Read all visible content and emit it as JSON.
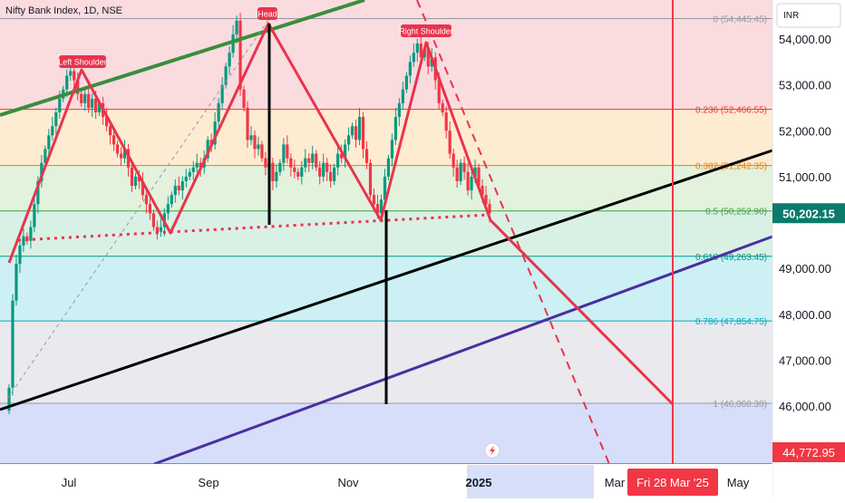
{
  "header": {
    "symbol_title": "Nifty Bank Index, 1D, NSE",
    "currency": "INR"
  },
  "colors": {
    "up": "#089981",
    "down": "#f23645",
    "pattern": "#e8344e",
    "fib_zone_0": "#fadbde",
    "fib_zone_1": "#fdebd2",
    "fib_zone_2": "#e2f2dd",
    "fib_zone_3": "#d9f1e4",
    "fib_zone_4": "#cdf0f4",
    "fib_zone_5": "#e9e9ee",
    "fib_zone_6": "#d6def9",
    "trend_green": "#388e3c",
    "channel_black": "#000000",
    "channel_purple": "#4a2fa0",
    "last_price_bg": "#0b7b6b",
    "alert_price_bg": "#f23645",
    "date_highlight_bg": "#c9d6f5"
  },
  "chart_data": {
    "type": "candlestick",
    "x_ticks": [
      "Jul",
      "Sep",
      "Nov",
      "2025",
      "Mar",
      "May"
    ],
    "y_ticks": [
      "54,000.00",
      "53,000.00",
      "52,000.00",
      "51,000.00",
      "49,000.00",
      "48,000.00",
      "47,000.00",
      "46,000.00"
    ],
    "y_range": [
      44600,
      55000
    ],
    "last_price": {
      "value": 50202.15,
      "label": "50,202.15"
    },
    "alert_price": {
      "value": 44772.95,
      "label": "44,772.95"
    },
    "highlighted_date": "Fri 28 Mar '25",
    "fib_levels": [
      {
        "ratio": 0,
        "price": 54445.45,
        "label": "0 (54,445.45)"
      },
      {
        "ratio": 0.236,
        "price": 52466.55,
        "label": "0.236 (52,466.55)"
      },
      {
        "ratio": 0.382,
        "price": 51242.35,
        "label": "0.382 (51,242.35)"
      },
      {
        "ratio": 0.5,
        "price": 50252.9,
        "label": "0.5 (50,252.90)"
      },
      {
        "ratio": 0.618,
        "price": 49263.45,
        "label": "0.618 (49,263.45)"
      },
      {
        "ratio": 0.786,
        "price": 47854.75,
        "label": "0.786 (47,854.75)"
      },
      {
        "ratio": 1,
        "price": 46060.3,
        "label": "1 (46,060.30)"
      }
    ],
    "annotations": [
      "Left Shoulder",
      "Head",
      "Right Shoulder"
    ],
    "closes": [
      46400,
      48300,
      49100,
      49500,
      49700,
      49600,
      49900,
      50400,
      50900,
      51300,
      51600,
      51900,
      52100,
      52400,
      52700,
      52900,
      53200,
      53300,
      53100,
      52800,
      52600,
      52800,
      52500,
      52700,
      52400,
      52600,
      52300,
      52100,
      51900,
      51700,
      51500,
      51400,
      51600,
      51200,
      50800,
      51000,
      50900,
      50600,
      50400,
      50200,
      49900,
      49800,
      49900,
      50200,
      50400,
      50600,
      50800,
      50700,
      50900,
      51000,
      51100,
      51200,
      51300,
      51200,
      51400,
      51800,
      51700,
      52200,
      52600,
      53000,
      53400,
      53700,
      54100,
      54400,
      52900,
      52500,
      51800,
      51900,
      51600,
      51700,
      51400,
      51200,
      51300,
      50900,
      51100,
      51300,
      51700,
      51400,
      51200,
      51100,
      51000,
      51200,
      51400,
      51300,
      51500,
      51200,
      51000,
      51300,
      51100,
      50900,
      51200,
      51500,
      51400,
      51700,
      51900,
      52100,
      51800,
      52300,
      51600,
      51300,
      50600,
      50400,
      50200,
      50500,
      51000,
      51400,
      51800,
      52300,
      52600,
      52900,
      53200,
      53500,
      53700,
      53900,
      53600,
      53800,
      53400,
      53600,
      53100,
      52600,
      52400,
      52000,
      51500,
      51200,
      50900,
      51300,
      51100,
      50700,
      51000,
      51200,
      50800,
      50600,
      50400,
      50200
    ]
  }
}
